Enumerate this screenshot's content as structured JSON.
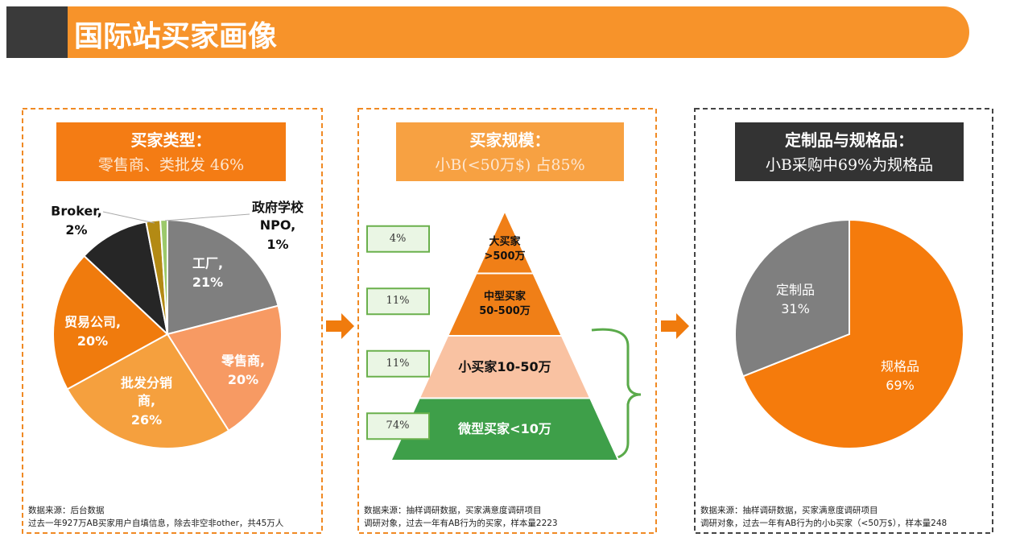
{
  "title": "国际站买家画像",
  "chart_data": [
    {
      "type": "pie",
      "heading": "买家类型：",
      "subheading": "零售商、类批发 46%",
      "categories": [
        "工厂,",
        "零售商,",
        "批发分销\n商,",
        "贸易公司,",
        null,
        "Broker,",
        "政府学校\nNPO,"
      ],
      "values": [
        21,
        20,
        26,
        20,
        10,
        2,
        1
      ],
      "value_labels": [
        "21%",
        "20%",
        "26%",
        "20%",
        null,
        "2%",
        "1%"
      ],
      "colors": [
        "#7f7f7f",
        "#f79a63",
        "#f5a03e",
        "#f07b0d",
        "#262626",
        "#b38a14",
        "#9cc96b"
      ],
      "notes": [
        "数据来源：后台数据",
        "过去一年927万AB买家用户自填信息，除去非空非other，共45万人"
      ]
    },
    {
      "type": "pyramid",
      "heading": "买家规模：",
      "subheading": "小B(<50万$) 占85%",
      "categories": [
        "大买家\n>500万",
        "中型买家\n50-500万",
        "小买家10-50万",
        "微型买家<10万"
      ],
      "values": [
        4,
        11,
        11,
        74
      ],
      "value_labels": [
        "4%",
        "11%",
        "11%",
        "74%"
      ],
      "colors": [
        "#f07f17",
        "#f07f17",
        "#f9c2a2",
        "#3e9f49"
      ],
      "notes": [
        "数据来源：抽样调研数据，买家满意度调研项目",
        "调研对象，过去一年有AB行为的买家，样本量2223"
      ]
    },
    {
      "type": "pie",
      "heading": "定制品与规格品：",
      "subheading": "小B采购中69%为规格品",
      "categories": [
        "规格品",
        "定制品"
      ],
      "values": [
        69,
        31
      ],
      "value_labels": [
        "69%",
        "31%"
      ],
      "colors": [
        "#f57b0c",
        "#7f7f7f"
      ],
      "notes": [
        "数据来源：抽样调研数据，买家满意度调研项目",
        "调研对象，过去一年有AB行为的小b买家（<50万$），样本量248"
      ]
    }
  ]
}
